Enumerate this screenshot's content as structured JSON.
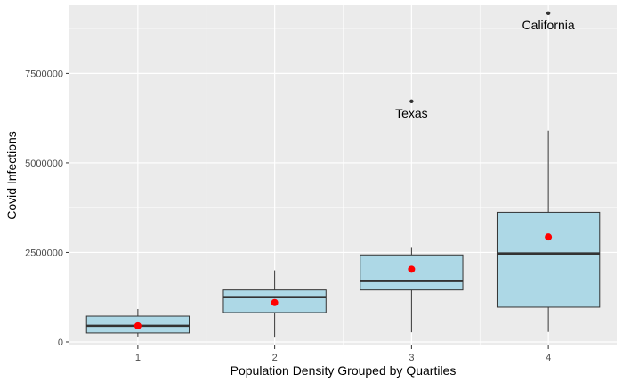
{
  "chart_data": {
    "type": "boxplot",
    "xlabel": "Population Density Grouped by Quartiles",
    "ylabel": "Covid Infections",
    "categories": [
      "1",
      "2",
      "3",
      "4"
    ],
    "ylim": [
      -100000,
      9400000
    ],
    "yticks": [
      0,
      2500000,
      5000000,
      7500000
    ],
    "ytick_labels": [
      "0",
      "2500000",
      "5000000",
      "7500000"
    ],
    "grid": true,
    "boxes": [
      {
        "category": "1",
        "whisker_low": 150000,
        "q1": 250000,
        "median": 450000,
        "q3": 720000,
        "whisker_high": 920000,
        "mean": 450000
      },
      {
        "category": "2",
        "whisker_low": 120000,
        "q1": 820000,
        "median": 1250000,
        "q3": 1450000,
        "whisker_high": 2000000,
        "mean": 1100000
      },
      {
        "category": "3",
        "whisker_low": 270000,
        "q1": 1450000,
        "median": 1700000,
        "q3": 2430000,
        "whisker_high": 2650000,
        "mean": 2030000
      },
      {
        "category": "4",
        "whisker_low": 280000,
        "q1": 970000,
        "median": 2470000,
        "q3": 3620000,
        "whisker_high": 5900000,
        "mean": 2930000
      }
    ],
    "outliers": [
      {
        "category": "3",
        "value": 6720000,
        "label": "Texas"
      },
      {
        "category": "4",
        "value": 9180000,
        "label": "California"
      }
    ],
    "colors": {
      "panel": "#ebebeb",
      "grid": "#ffffff",
      "box_fill": "#add8e6",
      "box_stroke": "#333333",
      "mean_point": "#ff0000",
      "outlier_point": "#333333"
    }
  }
}
